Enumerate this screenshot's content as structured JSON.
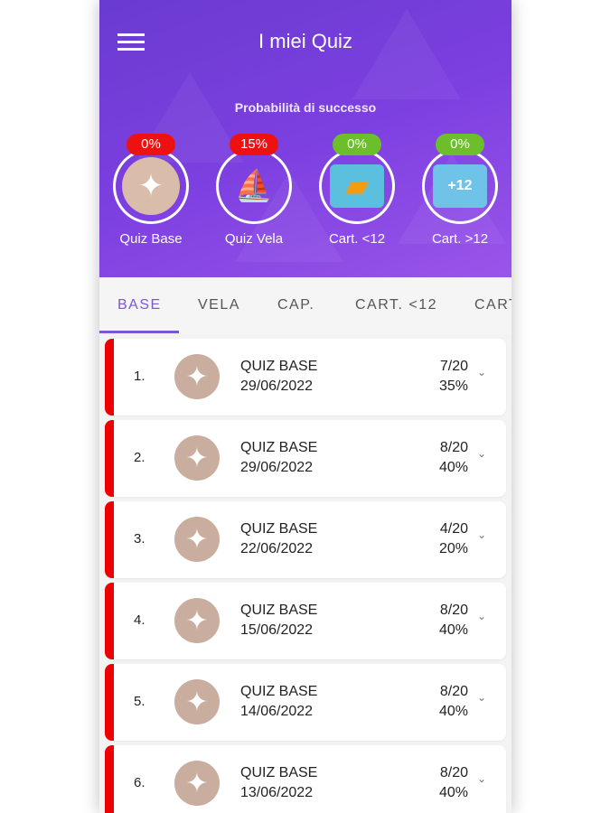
{
  "header": {
    "title": "I miei Quiz",
    "subtitle": "Probabilità di successo"
  },
  "categories": [
    {
      "label": "Quiz Base",
      "percent": "0%",
      "badge_color": "#ee1111",
      "icon": "compass-rose-icon"
    },
    {
      "label": "Quiz Vela",
      "percent": "15%",
      "badge_color": "#ee1111",
      "icon": "sailboat-icon"
    },
    {
      "label": "Cart. <12",
      "percent": "0%",
      "badge_color": "#6cbf2a",
      "icon": "map-icon"
    },
    {
      "label": "Cart. >12",
      "percent": "0%",
      "badge_color": "#6cbf2a",
      "icon": "map-plus12-icon"
    }
  ],
  "tabs": [
    "BASE",
    "VELA",
    "CAP.",
    "CART. <12",
    "CART"
  ],
  "active_tab": "BASE",
  "quizzes": [
    {
      "index": "1.",
      "name": "QUIZ BASE",
      "date": "29/06/2022",
      "score": "7/20",
      "percent": "35%"
    },
    {
      "index": "2.",
      "name": "QUIZ BASE",
      "date": "29/06/2022",
      "score": "8/20",
      "percent": "40%"
    },
    {
      "index": "3.",
      "name": "QUIZ BASE",
      "date": "22/06/2022",
      "score": "4/20",
      "percent": "20%"
    },
    {
      "index": "4.",
      "name": "QUIZ BASE",
      "date": "15/06/2022",
      "score": "8/20",
      "percent": "40%"
    },
    {
      "index": "5.",
      "name": "QUIZ BASE",
      "date": "14/06/2022",
      "score": "8/20",
      "percent": "40%"
    },
    {
      "index": "6.",
      "name": "QUIZ BASE",
      "date": "13/06/2022",
      "score": "8/20",
      "percent": "40%"
    }
  ]
}
